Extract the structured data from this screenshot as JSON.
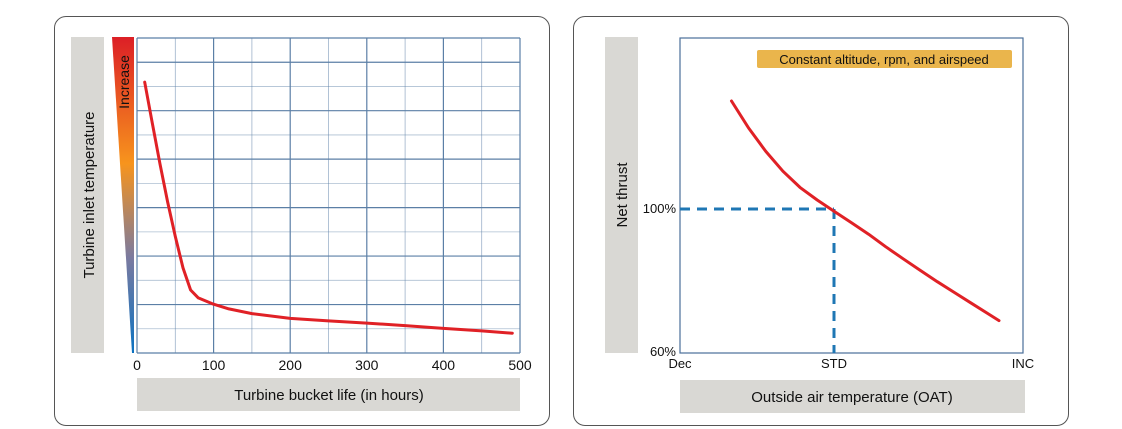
{
  "colors": {
    "curve": "#e02126",
    "grid": "#5b7fa6",
    "dashed": "#1f77b4",
    "label_bar": "#d9d8d4",
    "badge": "#eab54c"
  },
  "chart_data": [
    {
      "type": "line",
      "title": "",
      "xlabel": "Turbine bucket life (in hours)",
      "ylabel": "Turbine inlet temperature",
      "gradient_label": "Increase",
      "xlim": [
        0,
        500
      ],
      "x_ticks": [
        "0",
        "100",
        "200",
        "300",
        "400",
        "500"
      ],
      "grid": true,
      "series": [
        {
          "x": [
            10,
            20,
            30,
            40,
            50,
            60,
            70,
            80,
            100,
            120,
            150,
            200,
            250,
            300,
            350,
            400,
            450,
            490
          ],
          "y": [
            0.86,
            0.73,
            0.6,
            0.48,
            0.37,
            0.27,
            0.2,
            0.175,
            0.155,
            0.14,
            0.125,
            0.11,
            0.102,
            0.095,
            0.087,
            0.078,
            0.07,
            0.063
          ]
        }
      ]
    },
    {
      "type": "line",
      "title": "",
      "xlabel": "Outside air temperature (OAT)",
      "ylabel": "Net thrust",
      "annotation": "Constant altitude, rpm, and airspeed",
      "x_ticks": [
        "Dec",
        "STD",
        "INC"
      ],
      "y_ticks": [
        "60%",
        "100%"
      ],
      "reference": {
        "x": "STD",
        "y": "100%"
      },
      "grid": false,
      "series": [
        {
          "x": [
            0.15,
            0.2,
            0.25,
            0.3,
            0.35,
            0.4,
            0.45,
            0.5,
            0.55,
            0.6,
            0.65,
            0.7,
            0.75,
            0.8,
            0.85,
            0.9,
            0.93
          ],
          "y": [
            1.3,
            1.225,
            1.16,
            1.105,
            1.06,
            1.025,
            0.993,
            0.962,
            0.93,
            0.895,
            0.862,
            0.83,
            0.798,
            0.768,
            0.738,
            0.708,
            0.69
          ]
        }
      ]
    }
  ]
}
